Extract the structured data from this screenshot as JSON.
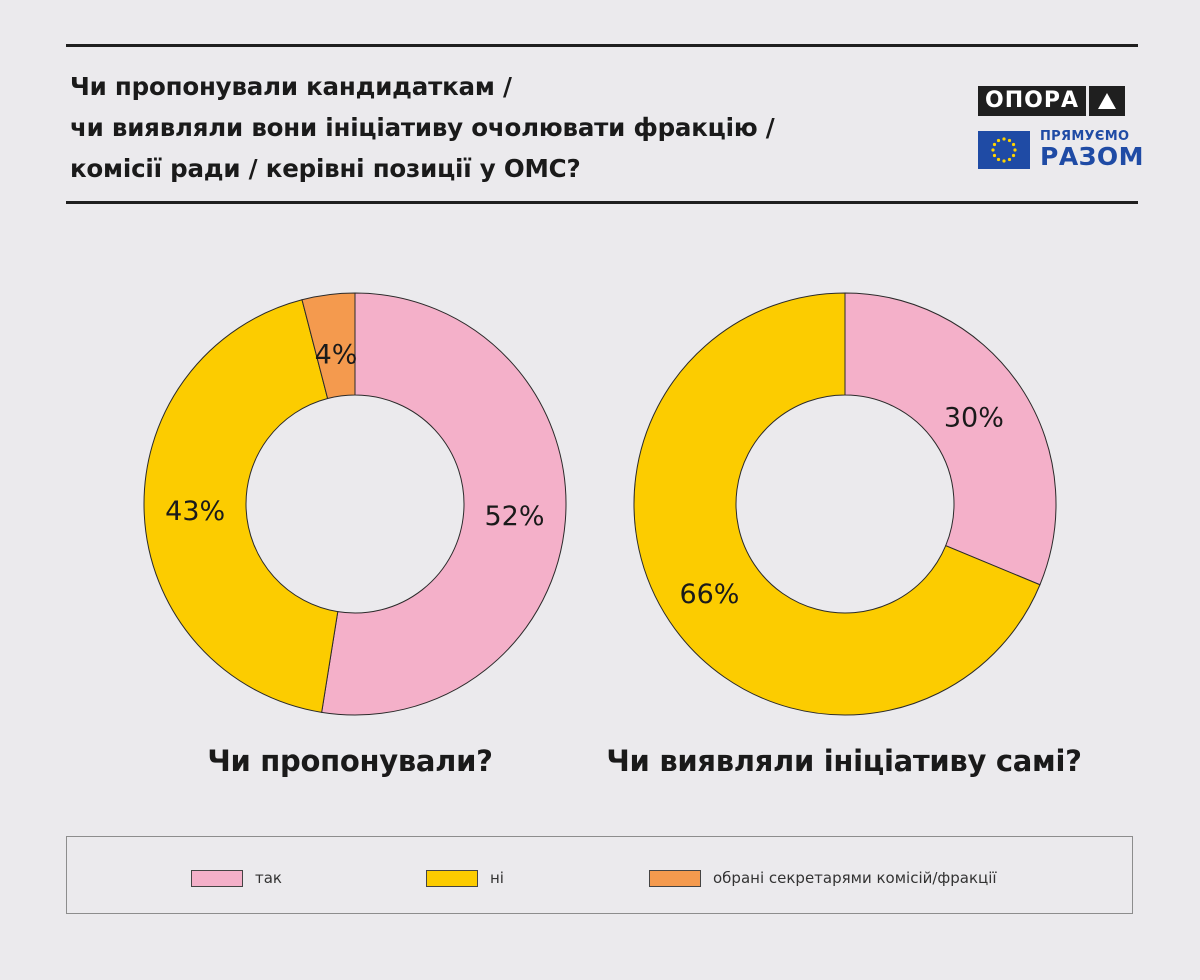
{
  "header": {
    "title_lines": [
      "Чи пропонували кандидаткам /",
      "чи виявляли вони ініціативу очолювати фракцію /",
      "комісії ради / керівні позиції у ОМС?"
    ],
    "logo_opora": "ОПОРА",
    "logo_eu_line1": "ПРЯМУЄМО",
    "logo_eu_line2": "РАЗОМ"
  },
  "colors": {
    "tak": "#f4b0c9",
    "ni": "#fccc00",
    "secretaries": "#f49a4e",
    "eu_blue": "#1f4ba5",
    "eu_star": "#ffd400"
  },
  "chart_data": [
    {
      "type": "pie",
      "variant": "donut",
      "title": "Чи пропонували?",
      "slices": [
        {
          "label": "так",
          "value": 52,
          "display": "52%",
          "color_key": "tak"
        },
        {
          "label": "ні",
          "value": 43,
          "display": "43%",
          "color_key": "ni"
        },
        {
          "label": "обрані секретарями комісій/фракції",
          "value": 4,
          "display": "4%",
          "color_key": "secretaries"
        }
      ]
    },
    {
      "type": "pie",
      "variant": "donut",
      "title": "Чи виявляли ініціативу самі?",
      "slices": [
        {
          "label": "так",
          "value": 30,
          "display": "30%",
          "color_key": "tak"
        },
        {
          "label": "ні",
          "value": 66,
          "display": "66%",
          "color_key": "ni"
        }
      ]
    }
  ],
  "legend": {
    "items": [
      {
        "label": "так",
        "color_key": "tak"
      },
      {
        "label": "ні",
        "color_key": "ni"
      },
      {
        "label": "обрані секретарями комісій/фракції",
        "color_key": "secretaries"
      }
    ]
  }
}
